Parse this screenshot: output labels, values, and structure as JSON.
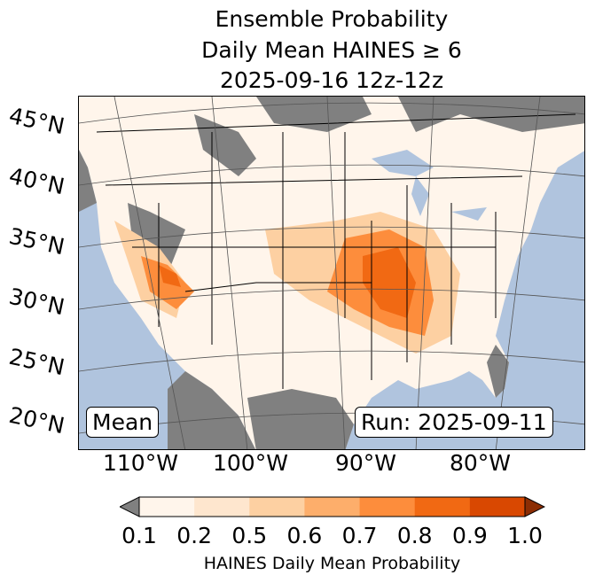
{
  "title": {
    "line1": "Ensemble Probability",
    "line2": "Daily Mean HAINES ≥ 6",
    "line3": "2025-09-16 12z-12z"
  },
  "map": {
    "ocean_color": "#b0c4de",
    "land_color": "#808080",
    "lat_labels": [
      "45°N",
      "40°N",
      "35°N",
      "30°N",
      "25°N",
      "20°N"
    ],
    "lon_labels": [
      "110°W",
      "100°W",
      "90°W",
      "80°W"
    ],
    "stat_label": "Mean",
    "run_label": "Run: 2025-09-11"
  },
  "colorbar": {
    "ticks": [
      "0.1",
      "0.2",
      "0.5",
      "0.6",
      "0.7",
      "0.8",
      "0.9",
      "1.0"
    ],
    "colors": [
      "#fff5eb",
      "#fee6ce",
      "#fdd0a2",
      "#fdae6b",
      "#fd8d3c",
      "#f16913",
      "#d94801"
    ],
    "under_color": "#808080",
    "over_color": "#8c2d04",
    "label": "HAINES Daily Mean Probability"
  }
}
